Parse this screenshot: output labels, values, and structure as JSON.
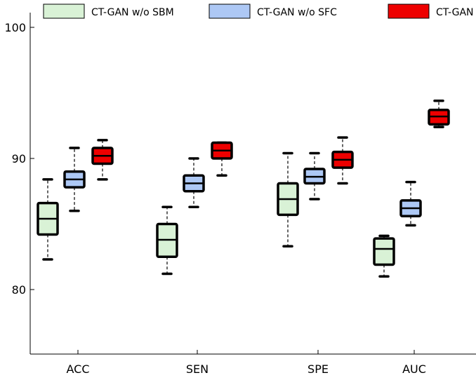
{
  "chart_data": {
    "type": "box",
    "categories": [
      "ACC",
      "SEN",
      "SPE",
      "AUC"
    ],
    "y_ticks": [
      "80",
      "90",
      "100"
    ],
    "ylim": [
      75,
      100
    ],
    "grid": false,
    "legend_position": "top",
    "series": [
      {
        "name": "CT-GAN w/o SBM",
        "color": "#d9f2d6",
        "boxes": [
          {
            "min": 82.3,
            "q1": 84.2,
            "median": 85.4,
            "q3": 86.6,
            "max": 88.4
          },
          {
            "min": 81.2,
            "q1": 82.5,
            "median": 83.8,
            "q3": 85.0,
            "max": 86.3
          },
          {
            "min": 83.3,
            "q1": 85.7,
            "median": 86.9,
            "q3": 88.1,
            "max": 90.4
          },
          {
            "min": 81.0,
            "q1": 81.9,
            "median": 83.1,
            "q3": 83.9,
            "max": 84.1
          }
        ]
      },
      {
        "name": "CT-GAN w/o SFC",
        "color": "#adc8f5",
        "boxes": [
          {
            "min": 86.0,
            "q1": 87.8,
            "median": 88.4,
            "q3": 89.0,
            "max": 90.8
          },
          {
            "min": 86.3,
            "q1": 87.5,
            "median": 88.1,
            "q3": 88.7,
            "max": 90.0
          },
          {
            "min": 86.9,
            "q1": 88.1,
            "median": 88.6,
            "q3": 89.2,
            "max": 90.4
          },
          {
            "min": 84.9,
            "q1": 85.6,
            "median": 86.2,
            "q3": 86.8,
            "max": 88.2
          }
        ]
      },
      {
        "name": "CT-GAN",
        "color": "#ee0000",
        "boxes": [
          {
            "min": 88.4,
            "q1": 89.6,
            "median": 90.2,
            "q3": 90.8,
            "max": 91.4
          },
          {
            "min": 88.7,
            "q1": 90.0,
            "median": 90.6,
            "q3": 91.2,
            "max": 91.2
          },
          {
            "min": 88.1,
            "q1": 89.3,
            "median": 89.9,
            "q3": 90.5,
            "max": 91.6
          },
          {
            "min": 92.4,
            "q1": 92.6,
            "median": 93.2,
            "q3": 93.7,
            "max": 94.4
          }
        ]
      }
    ]
  }
}
